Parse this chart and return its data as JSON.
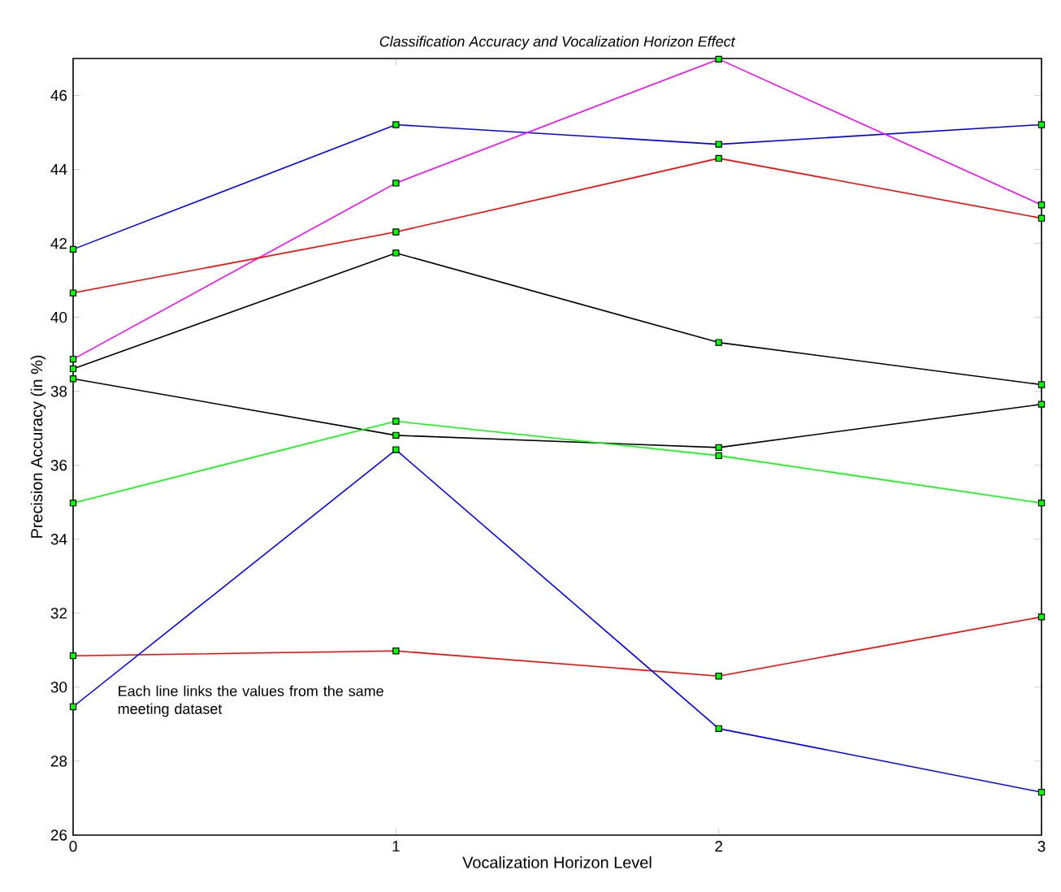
{
  "chart_data": {
    "type": "line",
    "title": "*Classification Accuracy and Vocalization Horizon Effect*",
    "xlabel": "Vocalization Horizon Level",
    "ylabel": "Precision Accuracy (in %)",
    "x": [
      0,
      1,
      2,
      3
    ],
    "series": [
      {
        "color": "#0000ff",
        "values": [
          41.84,
          45.21,
          44.68,
          45.21
        ]
      },
      {
        "color": "#ff00ff",
        "values": [
          38.87,
          43.63,
          46.98,
          43.04
        ]
      },
      {
        "color": "#ff0000",
        "values": [
          40.66,
          42.31,
          44.3,
          42.68
        ]
      },
      {
        "color": "#000000",
        "values": [
          38.61,
          41.74,
          39.32,
          38.18
        ]
      },
      {
        "color": "#000000",
        "values": [
          38.34,
          36.81,
          36.48,
          37.65
        ]
      },
      {
        "color": "#00ff00",
        "values": [
          34.98,
          37.19,
          36.26,
          34.98
        ]
      },
      {
        "color": "#ff0000",
        "values": [
          30.85,
          30.98,
          30.3,
          31.9
        ]
      },
      {
        "color": "#0000ff",
        "values": [
          29.47,
          36.42,
          28.88,
          27.16
        ]
      }
    ],
    "xlim": [
      0,
      3
    ],
    "ylim": [
      26,
      47
    ],
    "xticks": [
      0,
      1,
      2,
      3
    ],
    "yticks": [
      26,
      28,
      30,
      32,
      34,
      36,
      38,
      40,
      42,
      44,
      46
    ],
    "grid": false,
    "marker": "square",
    "line_style": "solid",
    "annotations": [
      "Each line links the values from the same meeting dataset"
    ]
  }
}
